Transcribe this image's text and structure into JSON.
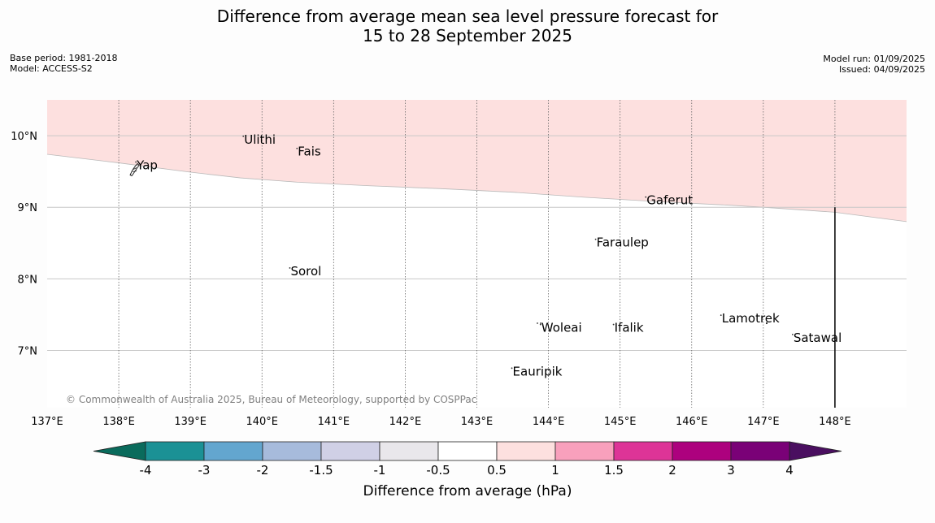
{
  "title_line1": "Difference from average mean sea level pressure forecast for",
  "title_line2": "15 to 28 September 2025",
  "meta_left": [
    "Base period: 1981-2018",
    "Model: ACCESS-S2"
  ],
  "meta_right": [
    "Model run: 01/09/2025",
    "Issued: 04/09/2025"
  ],
  "copyright": "© Commonwealth of Australia 2025, Bureau of Meteorology, supported by COSPPac",
  "map": {
    "lon_range": [
      137,
      149
    ],
    "lat_range": [
      6.2,
      10.5
    ],
    "lon_ticks": [
      {
        "value": 137,
        "label": "137°E"
      },
      {
        "value": 138,
        "label": "138°E"
      },
      {
        "value": 139,
        "label": "139°E"
      },
      {
        "value": 140,
        "label": "140°E"
      },
      {
        "value": 141,
        "label": "141°E"
      },
      {
        "value": 142,
        "label": "142°E"
      },
      {
        "value": 143,
        "label": "143°E"
      },
      {
        "value": 144,
        "label": "144°E"
      },
      {
        "value": 145,
        "label": "145°E"
      },
      {
        "value": 146,
        "label": "146°E"
      },
      {
        "value": 147,
        "label": "147°E"
      },
      {
        "value": 148,
        "label": "148°E"
      }
    ],
    "lat_ticks": [
      {
        "value": 10,
        "label": "10°N"
      },
      {
        "value": 9,
        "label": "9°N"
      },
      {
        "value": 8,
        "label": "8°N"
      },
      {
        "value": 7,
        "label": "7°N"
      }
    ],
    "shaded_region": {
      "category": "0.5 to 1",
      "color": "#fde0df",
      "boundary": [
        [
          137.0,
          9.74
        ],
        [
          138.0,
          9.62
        ],
        [
          139.0,
          9.49
        ],
        [
          139.7,
          9.41
        ],
        [
          140.5,
          9.35
        ],
        [
          141.5,
          9.3
        ],
        [
          142.5,
          9.26
        ],
        [
          143.5,
          9.21
        ],
        [
          144.5,
          9.14
        ],
        [
          145.5,
          9.08
        ],
        [
          146.5,
          9.03
        ],
        [
          147.0,
          9.0
        ],
        [
          148.0,
          8.93
        ],
        [
          149.0,
          8.8
        ]
      ]
    },
    "boundary_line": {
      "lon": 148.0,
      "lat_from": 9.0,
      "lat_to": 6.2
    },
    "places": [
      {
        "name": "Yap",
        "lon": 138.25,
        "lat": 9.53
      },
      {
        "name": "Ulithi",
        "lon": 139.75,
        "lat": 9.89
      },
      {
        "name": "Fais",
        "lon": 140.5,
        "lat": 9.72
      },
      {
        "name": "Gaferut",
        "lon": 145.37,
        "lat": 9.04
      },
      {
        "name": "Faraulep",
        "lon": 144.67,
        "lat": 8.45
      },
      {
        "name": "Sorol",
        "lon": 140.4,
        "lat": 8.05
      },
      {
        "name": "Woleai",
        "lon": 143.9,
        "lat": 7.26
      },
      {
        "name": "Ifalik",
        "lon": 144.92,
        "lat": 7.26
      },
      {
        "name": "Lamotrek",
        "lon": 146.42,
        "lat": 7.39
      },
      {
        "name": "Satawal",
        "lon": 147.42,
        "lat": 7.12
      },
      {
        "name": "Eauripik",
        "lon": 143.5,
        "lat": 6.65
      }
    ]
  },
  "colorbar": {
    "label": "Difference from average (hPa)",
    "under_color": "#0a6b5c",
    "over_color": "#4a0f60",
    "bins": [
      {
        "color": "#1b9195"
      },
      {
        "color": "#63a6cf"
      },
      {
        "color": "#a7bbdc"
      },
      {
        "color": "#d0d0e6"
      },
      {
        "color": "#e9e7eb"
      },
      {
        "color": "#ffffff"
      },
      {
        "color": "#fde0df"
      },
      {
        "color": "#f8a0bc"
      },
      {
        "color": "#dd3497"
      },
      {
        "color": "#ad017e"
      },
      {
        "color": "#7a0177"
      }
    ],
    "ticks": [
      "-4",
      "-3",
      "-2",
      "-1.5",
      "-1",
      "-0.5",
      "0.5",
      "1",
      "1.5",
      "2",
      "3",
      "4"
    ]
  }
}
